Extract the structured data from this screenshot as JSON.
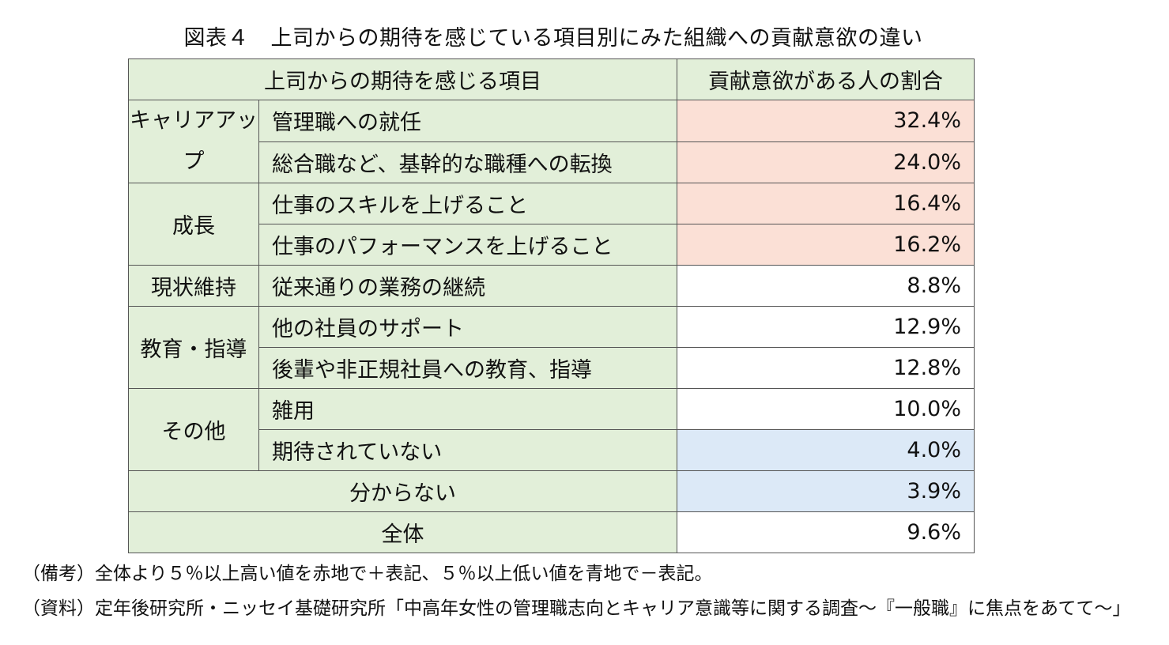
{
  "title": "図表４　上司からの期待を感じている項目別にみた組織への貢献意欲の違い",
  "table": {
    "header_item": "上司からの期待を感じる項目",
    "header_value": "貢献意欲がある人の割合",
    "rows": [
      {
        "category": "キャリアアップ",
        "item": "管理職への就任",
        "value": "32.4%",
        "highlight": "red"
      },
      {
        "category": "キャリアアップ",
        "item": "総合職など、基幹的な職種への転換",
        "value": "24.0%",
        "highlight": "red"
      },
      {
        "category": "成長",
        "item": "仕事のスキルを上げること",
        "value": "16.4%",
        "highlight": "red"
      },
      {
        "category": "成長",
        "item": "仕事のパフォーマンスを上げること",
        "value": "16.2%",
        "highlight": "red"
      },
      {
        "category": "現状維持",
        "item": "従来通りの業務の継続",
        "value": "8.8%",
        "highlight": "none"
      },
      {
        "category": "教育・指導",
        "item": "他の社員のサポート",
        "value": "12.9%",
        "highlight": "none"
      },
      {
        "category": "教育・指導",
        "item": "後輩や非正規社員への教育、指導",
        "value": "12.8%",
        "highlight": "none"
      },
      {
        "category": "その他",
        "item": "雑用",
        "value": "10.0%",
        "highlight": "none"
      },
      {
        "category": "その他",
        "item": "期待されていない",
        "value": "4.0%",
        "highlight": "blue"
      },
      {
        "category": "",
        "item": "分からない",
        "value": "3.9%",
        "highlight": "blue"
      },
      {
        "category": "",
        "item": "全体",
        "value": "9.6%",
        "highlight": "none"
      }
    ]
  },
  "colors": {
    "label_bg": "#e2efd9",
    "high_bg": "#fbe0d6",
    "low_bg": "#dce9f7",
    "border": "#555555"
  },
  "notes": {
    "remarks": "（備考）全体より５％以上高い値を赤地で＋表記、５％以上低い値を青地で－表記。",
    "source": "（資料）定年後研究所・ニッセイ基礎研究所「中高年女性の管理職志向とキャリア意識等に関する調査～『一般職』に焦点をあてて～」"
  }
}
